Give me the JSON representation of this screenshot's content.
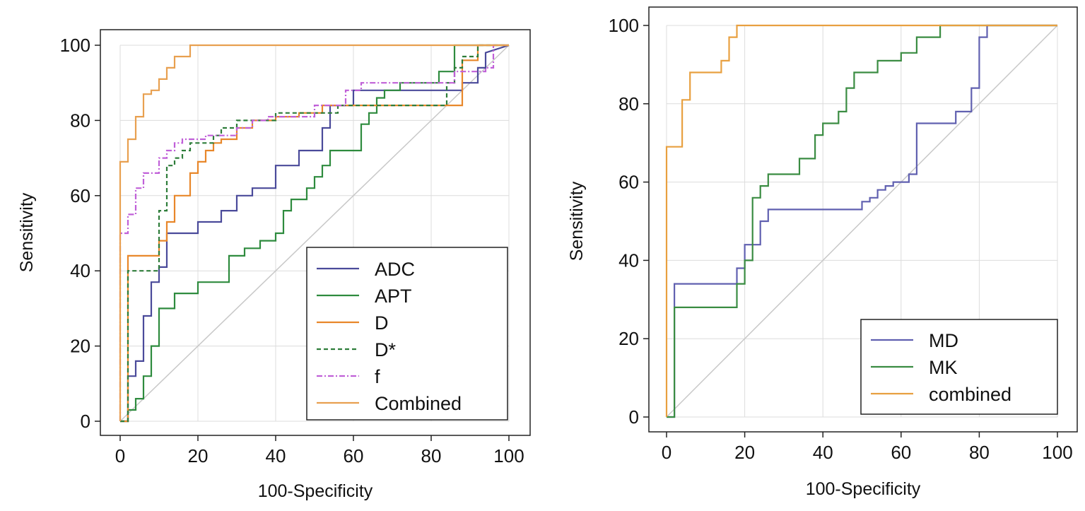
{
  "colors": {
    "ADC": "#4a4a9a",
    "APT": "#2e8b3e",
    "D": "#e8872a",
    "D*": "#2e7d3a",
    "f": "#c060d8",
    "Combined": "#e8a050",
    "MD": "#6060b0",
    "MK": "#3a8c42",
    "combined": "#e8a040",
    "reference": "#c8c8c8",
    "grid": "#dcdcdc",
    "axis": "#222222"
  },
  "chart_data": [
    {
      "type": "line",
      "title": "",
      "xlabel": "100-Specificity",
      "ylabel": "Sensitivity",
      "xlim": [
        0,
        100
      ],
      "ylim": [
        0,
        100
      ],
      "xticks": [
        0,
        20,
        40,
        60,
        80,
        100
      ],
      "yticks": [
        0,
        20,
        40,
        60,
        80,
        100
      ],
      "grid": true,
      "reference_line": true,
      "legend_position": "bottom-right",
      "series": [
        {
          "name": "ADC",
          "color": "#4a4a9a",
          "dash": "",
          "x": [
            0,
            2,
            2,
            4,
            4,
            6,
            6,
            8,
            8,
            10,
            10,
            12,
            12,
            20,
            20,
            26,
            26,
            30,
            30,
            34,
            34,
            40,
            40,
            46,
            46,
            52,
            52,
            54,
            54,
            60,
            60,
            62,
            62,
            76,
            76,
            88,
            88,
            92,
            92,
            94,
            94,
            100
          ],
          "y": [
            0,
            0,
            12,
            12,
            16,
            16,
            28,
            28,
            37,
            37,
            41,
            41,
            50,
            50,
            53,
            53,
            56,
            56,
            60,
            60,
            62,
            62,
            68,
            68,
            72,
            72,
            78,
            78,
            84,
            84,
            88,
            88,
            88,
            88,
            88,
            88,
            90,
            90,
            94,
            94,
            98,
            100
          ]
        },
        {
          "name": "APT",
          "color": "#2e8b3e",
          "dash": "",
          "x": [
            0,
            2,
            2,
            4,
            4,
            6,
            6,
            8,
            8,
            10,
            10,
            14,
            14,
            20,
            20,
            28,
            28,
            32,
            32,
            36,
            36,
            40,
            40,
            42,
            42,
            44,
            44,
            48,
            48,
            50,
            50,
            52,
            52,
            54,
            54,
            56,
            56,
            62,
            62,
            64,
            64,
            66,
            66,
            68,
            68,
            70,
            70,
            72,
            72,
            82,
            82,
            86,
            86,
            100
          ],
          "y": [
            0,
            0,
            3,
            3,
            6,
            6,
            12,
            12,
            20,
            20,
            30,
            30,
            34,
            34,
            37,
            37,
            44,
            44,
            46,
            46,
            48,
            48,
            50,
            50,
            56,
            56,
            59,
            59,
            62,
            62,
            65,
            65,
            68,
            68,
            72,
            72,
            72,
            72,
            79,
            79,
            82,
            82,
            86,
            86,
            88,
            88,
            88,
            88,
            90,
            90,
            93,
            93,
            100,
            100
          ]
        },
        {
          "name": "D",
          "color": "#e8872a",
          "dash": "",
          "x": [
            0,
            2,
            2,
            10,
            10,
            12,
            12,
            14,
            14,
            18,
            18,
            20,
            20,
            22,
            22,
            24,
            24,
            26,
            26,
            30,
            30,
            34,
            34,
            36,
            36,
            40,
            40,
            46,
            46,
            52,
            52,
            60,
            60,
            80,
            80,
            88,
            88,
            92,
            92,
            100
          ],
          "y": [
            0,
            0,
            44,
            44,
            48,
            48,
            53,
            53,
            60,
            60,
            66,
            66,
            69,
            69,
            72,
            72,
            74,
            74,
            75,
            75,
            78,
            78,
            80,
            80,
            80,
            80,
            81,
            81,
            82,
            82,
            84,
            84,
            84,
            84,
            84,
            84,
            96,
            96,
            100,
            100
          ]
        },
        {
          "name": "D*",
          "color": "#2e7d3a",
          "dash": "6,4",
          "x": [
            0,
            2,
            2,
            10,
            10,
            12,
            12,
            14,
            14,
            16,
            16,
            18,
            18,
            24,
            24,
            26,
            26,
            30,
            30,
            40,
            40,
            56,
            56,
            58,
            58,
            84,
            84,
            86,
            86,
            88,
            88,
            92,
            92,
            100
          ],
          "y": [
            0,
            0,
            40,
            40,
            56,
            56,
            68,
            68,
            70,
            70,
            72,
            72,
            74,
            74,
            76,
            76,
            78,
            78,
            80,
            80,
            82,
            82,
            84,
            84,
            84,
            84,
            90,
            90,
            94,
            94,
            97,
            97,
            100,
            100
          ]
        },
        {
          "name": "f",
          "color": "#c060d8",
          "dash": "8,3,2,3",
          "x": [
            0,
            0,
            2,
            2,
            4,
            4,
            6,
            6,
            10,
            10,
            12,
            12,
            14,
            14,
            16,
            16,
            22,
            22,
            30,
            30,
            34,
            34,
            38,
            38,
            50,
            50,
            58,
            58,
            62,
            62,
            70,
            70,
            86,
            86,
            94,
            94,
            96,
            96,
            100
          ],
          "y": [
            0,
            50,
            50,
            55,
            55,
            62,
            62,
            66,
            66,
            70,
            70,
            72,
            72,
            74,
            74,
            75,
            75,
            76,
            76,
            78,
            78,
            80,
            80,
            81,
            81,
            84,
            84,
            88,
            88,
            90,
            90,
            90,
            90,
            93,
            93,
            94,
            94,
            100,
            100
          ]
        },
        {
          "name": "Combined",
          "color": "#e8a050",
          "dash": "",
          "x": [
            0,
            0,
            2,
            2,
            4,
            4,
            6,
            6,
            8,
            8,
            10,
            10,
            12,
            12,
            14,
            14,
            16,
            16,
            18,
            18,
            20,
            20,
            100
          ],
          "y": [
            0,
            69,
            69,
            75,
            75,
            81,
            81,
            87,
            87,
            88,
            88,
            91,
            91,
            94,
            94,
            97,
            97,
            97,
            97,
            100,
            100,
            100,
            100
          ]
        }
      ]
    },
    {
      "type": "line",
      "title": "",
      "xlabel": "100-Specificity",
      "ylabel": "Sensitivity",
      "xlim": [
        0,
        100
      ],
      "ylim": [
        0,
        100
      ],
      "xticks": [
        0,
        20,
        40,
        60,
        80,
        100
      ],
      "yticks": [
        0,
        20,
        40,
        60,
        80,
        100
      ],
      "grid": true,
      "reference_line": true,
      "legend_position": "bottom-right",
      "series": [
        {
          "name": "MD",
          "color": "#6060b0",
          "dash": "",
          "x": [
            0,
            2,
            2,
            18,
            18,
            20,
            20,
            24,
            24,
            26,
            26,
            28,
            28,
            50,
            50,
            52,
            52,
            54,
            54,
            56,
            56,
            58,
            58,
            62,
            62,
            64,
            64,
            74,
            74,
            78,
            78,
            80,
            80,
            82,
            82,
            100
          ],
          "y": [
            0,
            0,
            34,
            34,
            38,
            38,
            44,
            44,
            50,
            50,
            53,
            53,
            53,
            53,
            55,
            55,
            56,
            56,
            58,
            58,
            59,
            59,
            60,
            60,
            62,
            62,
            75,
            75,
            78,
            78,
            84,
            84,
            97,
            97,
            100,
            100
          ]
        },
        {
          "name": "MK",
          "color": "#3a8c42",
          "dash": "",
          "x": [
            0,
            2,
            2,
            18,
            18,
            20,
            20,
            22,
            22,
            24,
            24,
            26,
            26,
            28,
            28,
            34,
            34,
            38,
            38,
            40,
            40,
            44,
            44,
            46,
            46,
            48,
            48,
            54,
            54,
            58,
            58,
            60,
            60,
            64,
            64,
            70,
            70,
            74,
            74,
            100
          ],
          "y": [
            0,
            0,
            28,
            28,
            34,
            34,
            40,
            40,
            56,
            56,
            59,
            59,
            62,
            62,
            62,
            62,
            66,
            66,
            72,
            72,
            75,
            75,
            78,
            78,
            84,
            84,
            88,
            88,
            91,
            91,
            91,
            91,
            93,
            93,
            97,
            97,
            100,
            100,
            100,
            100
          ]
        },
        {
          "name": "combined",
          "color": "#e8a040",
          "dash": "",
          "x": [
            0,
            0,
            2,
            2,
            4,
            4,
            6,
            6,
            8,
            8,
            12,
            12,
            14,
            14,
            16,
            16,
            18,
            18,
            20,
            20,
            100
          ],
          "y": [
            0,
            69,
            69,
            69,
            69,
            81,
            81,
            88,
            88,
            88,
            88,
            88,
            88,
            91,
            91,
            97,
            97,
            100,
            100,
            100,
            100
          ]
        }
      ]
    }
  ]
}
